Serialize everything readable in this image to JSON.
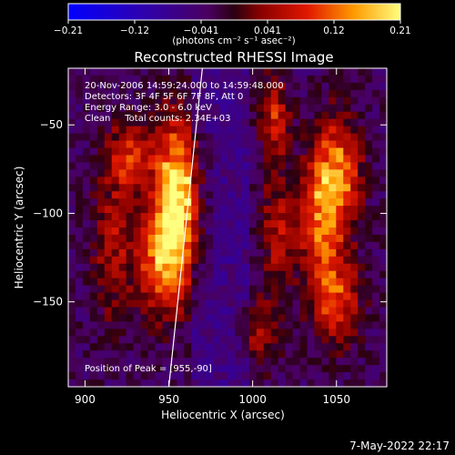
{
  "chart_data": {
    "type": "heatmap",
    "title": "Reconstructed RHESSI Image",
    "xlabel": "Heliocentric X (arcsec)",
    "ylabel": "Heliocentric Y (arcsec)",
    "xlim": [
      890,
      1080
    ],
    "ylim": [
      -198,
      -18
    ],
    "x_ticks": [
      {
        "value": 900,
        "label": "900"
      },
      {
        "value": 950,
        "label": "950"
      },
      {
        "value": 1000,
        "label": "1000"
      },
      {
        "value": 1050,
        "label": "1050"
      }
    ],
    "y_ticks": [
      {
        "value": -50,
        "label": "−50"
      },
      {
        "value": -100,
        "label": "−100"
      },
      {
        "value": -150,
        "label": "−150"
      }
    ],
    "colorbar": {
      "min": -0.21,
      "max": 0.21,
      "tick_labels": [
        "−0.21",
        "−0.12",
        "−0.041",
        "0.041",
        "0.12",
        "0.21"
      ],
      "unit_label": "(photons cm⁻² s⁻¹ asec⁻²)"
    },
    "info_lines": [
      "20-Nov-2006 14:59:24.000 to 14:59:48.000",
      "Detectors: 3F 4F 5F 6F 7F 8F, Att 0",
      "Energy Range: 3.0 - 6.0 keV",
      "Clean     Total counts: 2.34E+03"
    ],
    "peak_label": "Position of Peak = [955,-90]",
    "peak": {
      "x": 955,
      "y": -90
    },
    "sources": [
      {
        "x": 955,
        "y": -90,
        "sx": 9,
        "sy": 30,
        "amp": 0.25
      },
      {
        "x": 946,
        "y": -128,
        "sx": 10,
        "sy": 20,
        "amp": 0.16
      },
      {
        "x": 928,
        "y": -68,
        "sx": 10,
        "sy": 14,
        "amp": 0.12
      },
      {
        "x": 917,
        "y": -118,
        "sx": 9,
        "sy": 30,
        "amp": 0.09
      },
      {
        "x": 1013,
        "y": -45,
        "sx": 6,
        "sy": 16,
        "amp": 0.13
      },
      {
        "x": 1050,
        "y": -78,
        "sx": 10,
        "sy": 22,
        "amp": 0.17
      },
      {
        "x": 1040,
        "y": -108,
        "sx": 9,
        "sy": 26,
        "amp": 0.13
      },
      {
        "x": 1015,
        "y": -110,
        "sx": 7,
        "sy": 22,
        "amp": 0.1
      },
      {
        "x": 1050,
        "y": -150,
        "sx": 10,
        "sy": 18,
        "amp": 0.13
      },
      {
        "x": 1005,
        "y": -168,
        "sx": 8,
        "sy": 14,
        "amp": 0.08
      }
    ],
    "limb_line": {
      "x1": 970,
      "y1": -18,
      "x2": 950,
      "y2": -198
    }
  },
  "footer": {
    "timestamp": "7-May-2022 22:17"
  }
}
